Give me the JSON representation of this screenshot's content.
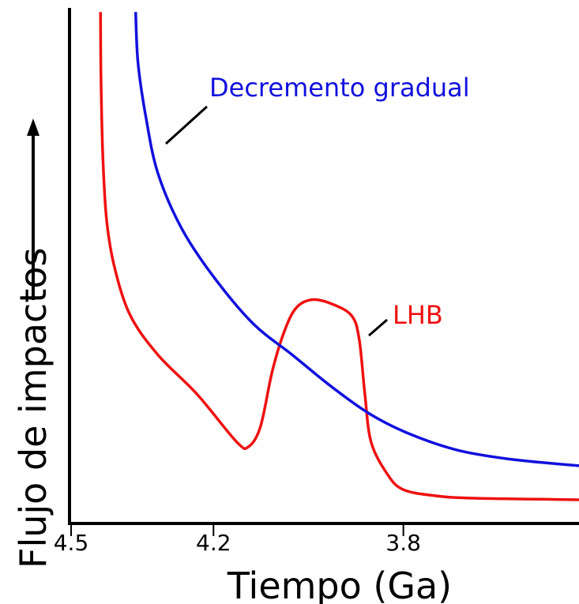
{
  "chart_data": {
    "type": "line",
    "xlabel": "Tiempo (Ga)",
    "ylabel": "Flujo de impactos",
    "xlim": [
      4.5,
      3.43
    ],
    "xticks": [
      4.5,
      4.2,
      3.8
    ],
    "ylim": [
      0,
      100
    ],
    "series": [
      {
        "name": "LHB",
        "color": "#ee1111",
        "x": [
          4.438,
          4.437,
          4.433,
          4.425,
          4.408,
          4.375,
          4.317,
          4.234,
          4.151,
          4.126,
          4.101,
          4.076,
          4.051,
          4.026,
          3.993,
          3.951,
          3.909,
          3.893,
          3.881,
          3.868,
          3.834,
          3.801,
          3.735,
          3.651,
          3.43
        ],
        "values": [
          99.2,
          86.2,
          70.9,
          58.7,
          49.5,
          40.3,
          32.7,
          25.0,
          15.8,
          14.9,
          18.8,
          29.6,
          37.2,
          41.8,
          43.4,
          42.6,
          40.3,
          35.7,
          25.0,
          15.8,
          9.6,
          6.6,
          5.4,
          4.9,
          4.6
        ]
      },
      {
        "name": "Decremento gradual",
        "color": "#1111dd",
        "x": [
          4.364,
          4.359,
          4.342,
          4.317,
          4.267,
          4.201,
          4.117,
          4.034,
          3.951,
          3.868,
          3.785,
          3.685,
          3.569,
          3.43
        ],
        "values": [
          99.2,
          89.3,
          78.6,
          67.9,
          57.2,
          48.0,
          38.8,
          32.7,
          26.5,
          21.1,
          17.3,
          14.2,
          12.4,
          11.2
        ]
      }
    ]
  }
}
